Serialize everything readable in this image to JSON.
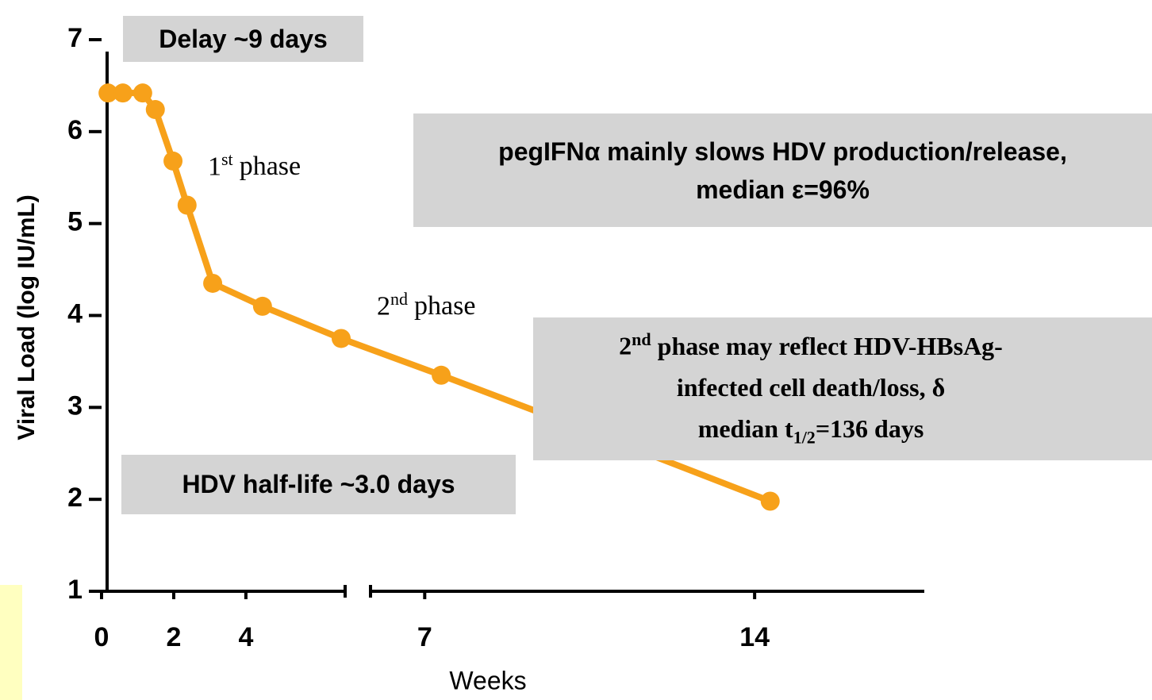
{
  "chart_data": {
    "type": "line",
    "x_label": "Weeks",
    "y_label": "Viral Load (log IU/mL)",
    "ylim": [
      1,
      7
    ],
    "yticks": [
      1,
      2,
      3,
      4,
      5,
      6,
      7
    ],
    "x_segments": [
      {
        "xlim": [
          0,
          6.75
        ],
        "xticks": [
          0,
          2,
          4
        ]
      },
      {
        "xlim": [
          5.85,
          17.6
        ],
        "xticks": [
          7,
          14
        ]
      }
    ],
    "series": [
      {
        "color": "#f7a11a",
        "x": [
          0.18,
          0.59,
          1.14,
          1.49,
          1.98,
          2.37,
          3.08,
          4.46,
          6.64,
          7.35,
          10.7,
          14.33
        ],
        "values": [
          6.42,
          6.42,
          6.42,
          6.24,
          5.68,
          5.2,
          4.35,
          4.1,
          3.75,
          3.35,
          2.7,
          1.98
        ]
      }
    ],
    "annotations": {
      "delay_note": "Delay ~9 days",
      "half_life_note": "HDV half-life ~3.0  days",
      "pegifn_note": [
        "pegIFNα mainly slows HDV production/release,",
        "median ε=96%"
      ],
      "phase1_label": {
        "number": "1",
        "suffix": "st",
        "word": "phase"
      },
      "phase2_label": {
        "number": "2",
        "suffix": "nd",
        "word": "phase"
      },
      "second_phase_note": {
        "line1": {
          "number": "2",
          "suffix": "nd",
          "text": "phase may reflect HDV-HBsAg-"
        },
        "line2": "infected cell death/loss, δ",
        "line3": {
          "text": "median t",
          "subscript": "1/2",
          "rest": "=136 days"
        }
      }
    }
  }
}
